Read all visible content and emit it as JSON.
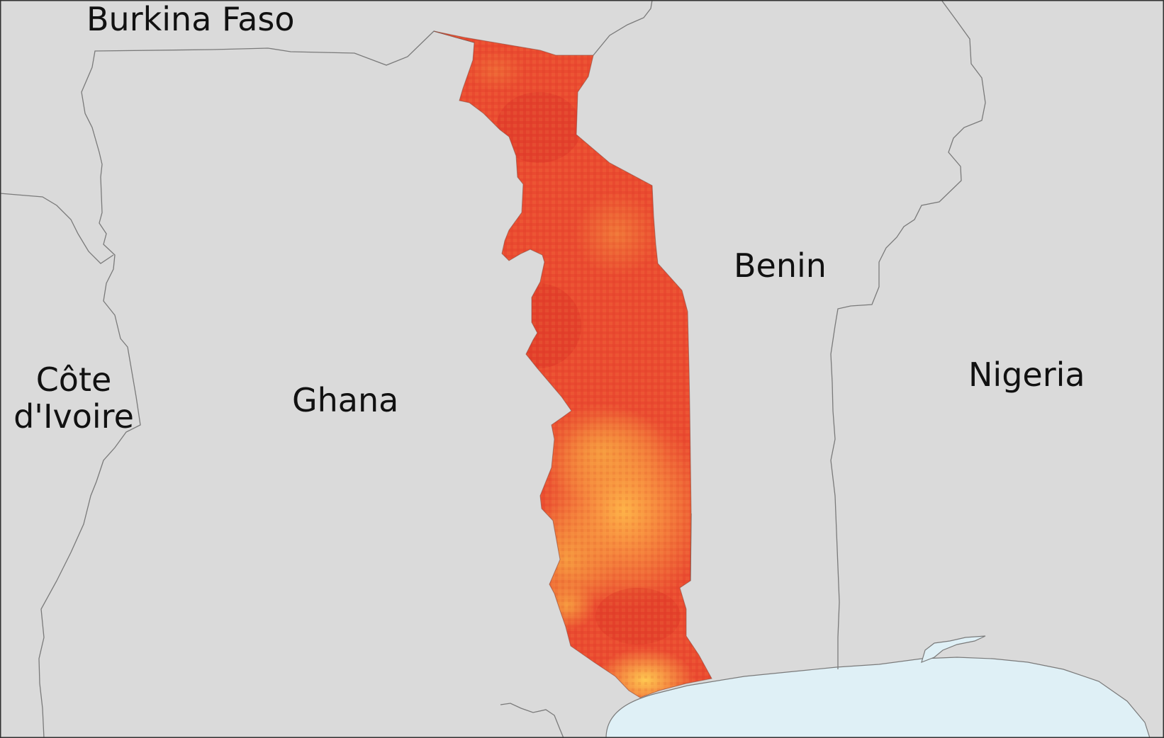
{
  "map": {
    "country_labels": {
      "burkina_faso": "Burkina Faso",
      "benin": "Benin",
      "ghana": "Ghana",
      "nigeria": "Nigeria",
      "cote_divoire_line1": "Côte",
      "cote_divoire_line2": "d'Ivoire"
    },
    "highlighted_country": "Togo",
    "colors": {
      "land_background": "#dadada",
      "border_line": "#7a7a7a",
      "ocean": "#dff0f6",
      "raster_low": "#ffc04a",
      "raster_mid": "#f58a3a",
      "raster_high": "#e8382a",
      "frame": "#333333"
    }
  }
}
